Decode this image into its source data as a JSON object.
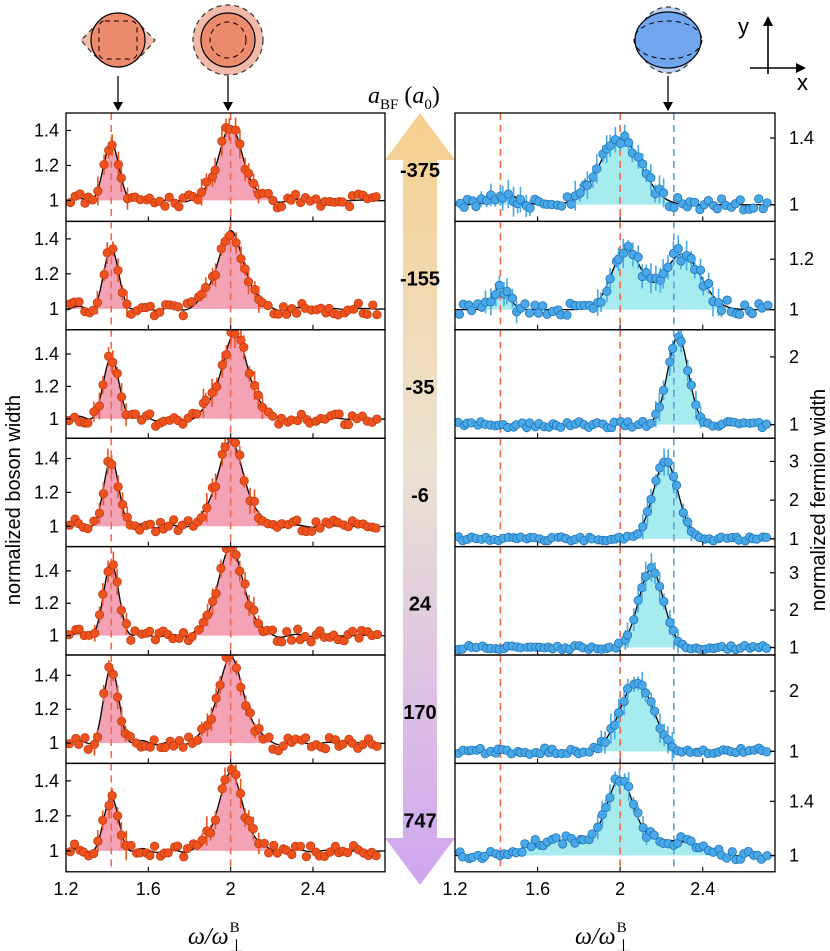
{
  "colors": {
    "boson_marker": "#f0521e",
    "boson_marker_edge": "#c23a0e",
    "boson_fill": "#f4a3b6",
    "fermion_marker": "#49a8e8",
    "fermion_marker_edge": "#1f74b8",
    "fermion_fill": "#a6ecef",
    "red_dash": "#ee6a4a",
    "blue_dash": "#5a9ee0",
    "arrow_top": "#f6cf8e",
    "arrow_bottom": "#cfa6f0",
    "boson_cloud": "#ec8a6c",
    "fermion_cloud": "#6fa6ee"
  },
  "labels": {
    "coupling_header": "a_BF (a_0)",
    "left_ylabel": "normalized boson width",
    "right_ylabel": "normalized fermion width",
    "xlabel": "ω/ω⊥B",
    "axis_y": "y",
    "axis_x": "x"
  },
  "couplings": [
    "-375",
    "-155",
    "-35",
    "-6",
    "24",
    "170",
    "747"
  ],
  "chart_data": {
    "type": "scatter",
    "xlim": [
      1.2,
      2.75
    ],
    "xticks": [
      "1.2",
      "1.6",
      "2",
      "2.4"
    ],
    "marker_lines": [
      1.42,
      2.0,
      2.26
    ],
    "boson_panels": [
      {
        "a_BF": -375,
        "ylim": [
          0.88,
          1.5
        ],
        "yticks": [
          "1",
          "1.2",
          "1.4"
        ],
        "peaks": [
          {
            "x": 1.42,
            "h": 0.3,
            "w": 0.04
          },
          {
            "x": 2.0,
            "h": 0.4,
            "w": 0.065
          }
        ],
        "ripple": 0.05
      },
      {
        "a_BF": -155,
        "ylim": [
          0.88,
          1.5
        ],
        "yticks": [
          "1",
          "1.2",
          "1.4"
        ],
        "peaks": [
          {
            "x": 1.42,
            "h": 0.32,
            "w": 0.038
          },
          {
            "x": 2.0,
            "h": 0.42,
            "w": 0.07
          }
        ],
        "ripple": 0.05
      },
      {
        "a_BF": -35,
        "ylim": [
          0.88,
          1.55
        ],
        "yticks": [
          "1",
          "1.2",
          "1.4"
        ],
        "peaks": [
          {
            "x": 1.42,
            "h": 0.35,
            "w": 0.04
          },
          {
            "x": 2.02,
            "h": 0.5,
            "w": 0.07
          }
        ],
        "ripple": 0.05
      },
      {
        "a_BF": -6,
        "ylim": [
          0.88,
          1.52
        ],
        "yticks": [
          "1",
          "1.2",
          "1.4"
        ],
        "peaks": [
          {
            "x": 1.42,
            "h": 0.37,
            "w": 0.038
          },
          {
            "x": 2.0,
            "h": 0.48,
            "w": 0.07
          }
        ],
        "ripple": 0.05
      },
      {
        "a_BF": 24,
        "ylim": [
          0.88,
          1.55
        ],
        "yticks": [
          "1",
          "1.2",
          "1.4"
        ],
        "peaks": [
          {
            "x": 1.42,
            "h": 0.42,
            "w": 0.038
          },
          {
            "x": 2.0,
            "h": 0.52,
            "w": 0.068
          }
        ],
        "ripple": 0.05
      },
      {
        "a_BF": 170,
        "ylim": [
          0.88,
          1.52
        ],
        "yticks": [
          "1",
          "1.2",
          "1.4"
        ],
        "peaks": [
          {
            "x": 1.42,
            "h": 0.42,
            "w": 0.038
          },
          {
            "x": 2.0,
            "h": 0.48,
            "w": 0.068
          }
        ],
        "ripple": 0.055
      },
      {
        "a_BF": 747,
        "ylim": [
          0.88,
          1.5
        ],
        "yticks": [
          "1",
          "1.2",
          "1.4"
        ],
        "peaks": [
          {
            "x": 1.42,
            "h": 0.28,
            "w": 0.038
          },
          {
            "x": 2.0,
            "h": 0.42,
            "w": 0.065
          }
        ],
        "ripple": 0.05
      }
    ],
    "fermion_panels": [
      {
        "a_BF": -375,
        "ylim": [
          0.9,
          1.55
        ],
        "yticks": [
          "1",
          "1.4"
        ],
        "peaks": [
          {
            "x": 1.45,
            "h": 0.06,
            "w": 0.06
          },
          {
            "x": 2.0,
            "h": 0.4,
            "w": 0.1
          }
        ],
        "noise": 0.04
      },
      {
        "a_BF": -155,
        "ylim": [
          0.92,
          1.35
        ],
        "yticks": [
          "1",
          "1.2"
        ],
        "peaks": [
          {
            "x": 1.42,
            "h": 0.09,
            "w": 0.04
          },
          {
            "x": 2.03,
            "h": 0.24,
            "w": 0.07
          },
          {
            "x": 2.3,
            "h": 0.22,
            "w": 0.09
          }
        ],
        "noise": 0.03
      },
      {
        "a_BF": -35,
        "ylim": [
          0.8,
          2.4
        ],
        "yticks": [
          "1",
          "2"
        ],
        "peaks": [
          {
            "x": 2.28,
            "h": 1.3,
            "w": 0.05
          }
        ],
        "noise": 0.05
      },
      {
        "a_BF": -6,
        "ylim": [
          0.8,
          3.6
        ],
        "yticks": [
          "1",
          "2",
          "3"
        ],
        "peaks": [
          {
            "x": 2.22,
            "h": 2.0,
            "w": 0.06
          }
        ],
        "noise": 0.06
      },
      {
        "a_BF": 24,
        "ylim": [
          0.8,
          3.7
        ],
        "yticks": [
          "1",
          "2",
          "3"
        ],
        "peaks": [
          {
            "x": 2.15,
            "h": 2.1,
            "w": 0.06
          }
        ],
        "noise": 0.06
      },
      {
        "a_BF": 170,
        "ylim": [
          0.8,
          2.6
        ],
        "yticks": [
          "1",
          "2"
        ],
        "peaks": [
          {
            "x": 2.08,
            "h": 1.15,
            "w": 0.08
          }
        ],
        "noise": 0.06
      },
      {
        "a_BF": 747,
        "ylim": [
          0.88,
          1.68
        ],
        "yticks": [
          "1",
          "1.4"
        ],
        "peaks": [
          {
            "x": 2.0,
            "h": 0.45,
            "w": 0.06
          }
        ],
        "shoulder": {
          "x0": 1.45,
          "x1": 2.5,
          "h": 0.12
        },
        "noise": 0.04
      }
    ]
  }
}
